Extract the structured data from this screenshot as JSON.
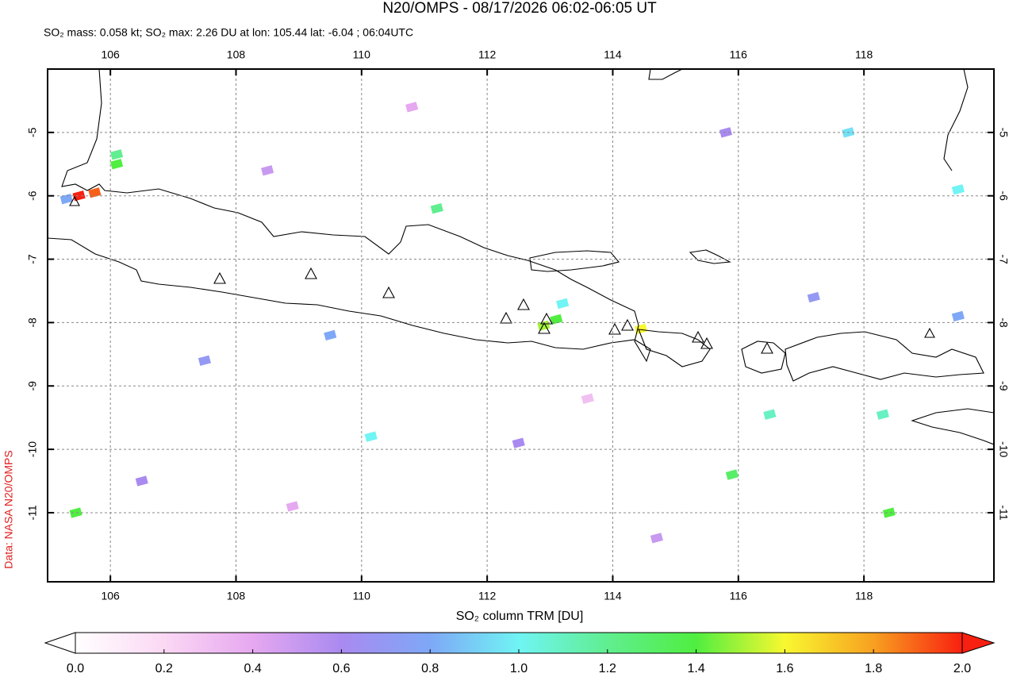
{
  "map": {
    "title": "N20/OMPS - 08/17/2026 06:02-06:05 UT",
    "subtitle": "SO₂ mass: 0.058 kt; SO₂ max: 2.26 DU at lon: 105.44 lat: -6.04 ; 06:04UTC",
    "source": "Data: NASA N20/OMPS",
    "colorbar_label": "SO₂ column TRM [DU]",
    "xlim": [
      105,
      120.07
    ],
    "ylim": [
      -12.09,
      -4.0
    ],
    "xticks": [
      106,
      108,
      110,
      112,
      114,
      116,
      118
    ],
    "yticks": [
      -5,
      -6,
      -7,
      -8,
      -9,
      -10,
      -11
    ],
    "grid": true,
    "cbar_lim": [
      0,
      2
    ],
    "cbar_ticks": [
      {
        "value": 0,
        "label": "0.0"
      },
      {
        "value": 0.2,
        "label": "0.2"
      },
      {
        "value": 0.4,
        "label": "0.4"
      },
      {
        "value": 0.6,
        "label": "0.6"
      },
      {
        "value": 0.8,
        "label": "0.8"
      },
      {
        "value": 1,
        "label": "1.0"
      },
      {
        "value": 1.2,
        "label": "1.2"
      },
      {
        "value": 1.4,
        "label": "1.4"
      },
      {
        "value": 1.6,
        "label": "1.6"
      },
      {
        "value": 1.8,
        "label": "1.8"
      },
      {
        "value": 2,
        "label": "2.0"
      }
    ],
    "colormap": [
      "#ffffff",
      "#fbd8f4",
      "#e6a8f0",
      "#a98af0",
      "#7ea8f6",
      "#70f4f4",
      "#60ee90",
      "#50ee40",
      "#f8f830",
      "#f8a020",
      "#f82010"
    ],
    "pixels": [
      {
        "lon": 105.5,
        "lat": -6.0,
        "value": 2.0
      },
      {
        "lon": 105.75,
        "lat": -5.95,
        "value": 1.9
      },
      {
        "lon": 105.3,
        "lat": -6.05,
        "value": 0.8
      },
      {
        "lon": 106.1,
        "lat": -5.5,
        "value": 1.4
      },
      {
        "lon": 106.1,
        "lat": -5.35,
        "value": 1.2
      },
      {
        "lon": 105.45,
        "lat": -11.0,
        "value": 1.4
      },
      {
        "lon": 113.1,
        "lat": -7.95,
        "value": 1.4
      },
      {
        "lon": 112.9,
        "lat": -8.05,
        "value": 1.5
      },
      {
        "lon": 114.45,
        "lat": -8.1,
        "value": 1.6
      },
      {
        "lon": 118.4,
        "lat": -11.0,
        "value": 1.4
      },
      {
        "lon": 115.9,
        "lat": -10.4,
        "value": 1.3
      },
      {
        "lon": 113.2,
        "lat": -7.7,
        "value": 1.0
      },
      {
        "lon": 116.5,
        "lat": -9.45,
        "value": 1.1
      },
      {
        "lon": 118.3,
        "lat": -9.45,
        "value": 1.1
      },
      {
        "lon": 110.15,
        "lat": -9.8,
        "value": 1.0
      },
      {
        "lon": 117.75,
        "lat": -5.0,
        "value": 0.95
      },
      {
        "lon": 111.2,
        "lat": -6.2,
        "value": 1.2
      },
      {
        "lon": 109.5,
        "lat": -8.2,
        "value": 0.8
      },
      {
        "lon": 107.5,
        "lat": -8.6,
        "value": 0.7
      },
      {
        "lon": 115.8,
        "lat": -5.0,
        "value": 0.6
      },
      {
        "lon": 112.5,
        "lat": -9.9,
        "value": 0.6
      },
      {
        "lon": 108.5,
        "lat": -5.6,
        "value": 0.5
      },
      {
        "lon": 117.2,
        "lat": -7.6,
        "value": 0.7
      },
      {
        "lon": 119.5,
        "lat": -7.9,
        "value": 0.8
      },
      {
        "lon": 106.5,
        "lat": -10.5,
        "value": 0.6
      },
      {
        "lon": 114.7,
        "lat": -11.4,
        "value": 0.5
      },
      {
        "lon": 119.5,
        "lat": -5.9,
        "value": 1.0
      },
      {
        "lon": 110.8,
        "lat": -4.6,
        "value": 0.4
      },
      {
        "lon": 113.6,
        "lat": -9.2,
        "value": 0.3
      },
      {
        "lon": 108.9,
        "lat": -10.9,
        "value": 0.4
      }
    ]
  }
}
